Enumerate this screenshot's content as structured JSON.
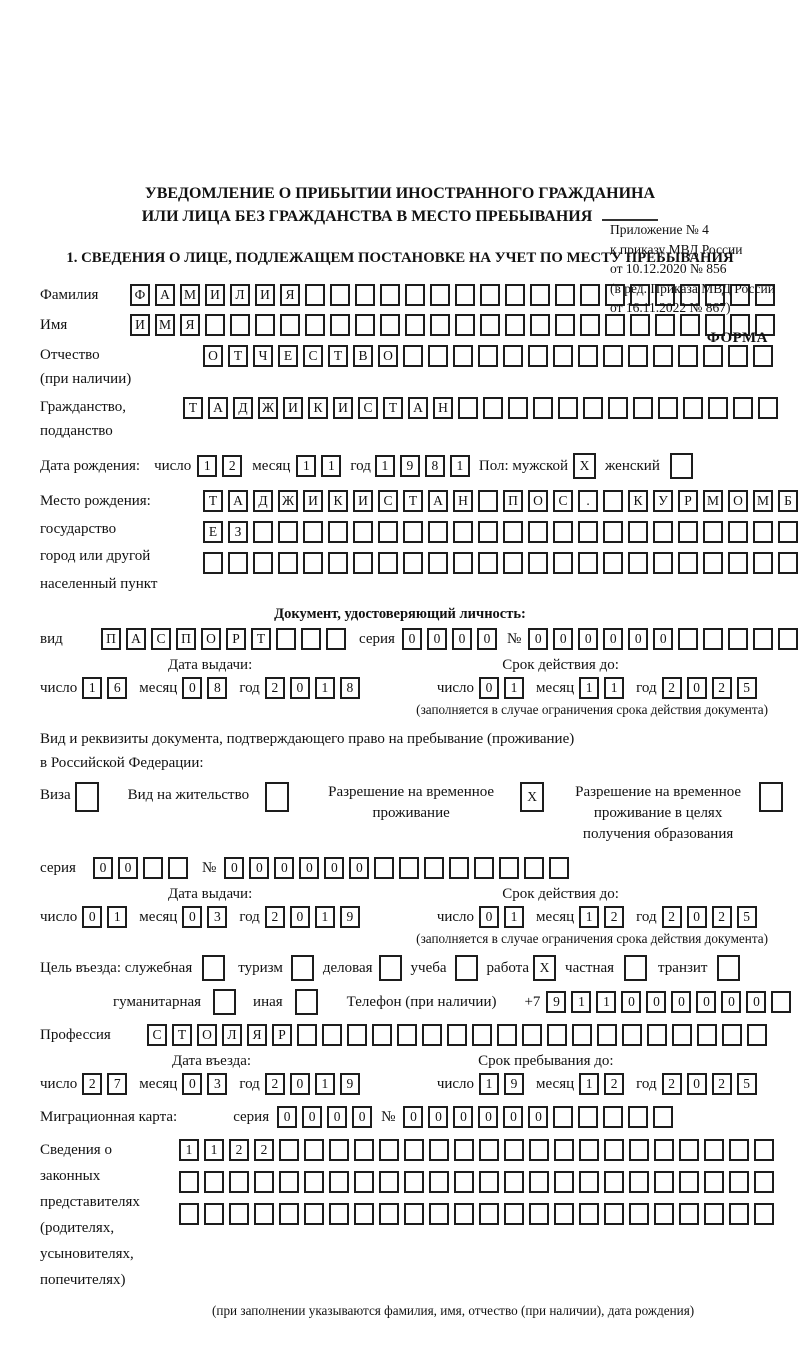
{
  "page": {
    "appendix_lines": [
      "Приложение № 4",
      "к приказу МВД России",
      "от 10.12.2020 № 856",
      "(в ред. Приказа МВД России",
      "от 16.11.2022 № 867)"
    ],
    "forma_label": "ФОРМА",
    "title_line1": "УВЕДОМЛЕНИЕ О ПРИБЫТИИ ИНОСТРАННОГО ГРАЖДАНИНА",
    "title_line2": "ИЛИ ЛИЦА БЕЗ ГРАЖДАНСТВА В МЕСТО ПРЕБЫВАНИЯ",
    "section1_heading": "1. СВЕДЕНИЯ О ЛИЦЕ, ПОДЛЕЖАЩЕМ ПОСТАНОВКЕ НА УЧЕТ ПО МЕСТУ ПРЕБЫВАНИЯ"
  },
  "common": {
    "day_label": "число",
    "month_label": "месяц",
    "year_label": "год",
    "series_label": "серия",
    "number_label": "№",
    "issue_date_label": "Дата выдачи:",
    "valid_until_label": "Срок действия до:",
    "limit_note": "(заполняется в случае ограничения срока действия документа)"
  },
  "person": {
    "surname_label": "Фамилия",
    "surname": {
      "t": "ФАМИЛИЯ",
      "n": 26
    },
    "name_label": "Имя",
    "name": {
      "t": "ИМЯ",
      "n": 26
    },
    "patronymic_label": "Отчество",
    "patronymic_sublabel": "(при наличии)",
    "patronymic": {
      "t": "ОТЧЕСТВО",
      "n": 23
    },
    "citizenship_label": "Гражданство,",
    "citizenship_sublabel": "подданство",
    "citizenship": {
      "t": "ТАДЖИКИСТАН",
      "n": 24
    },
    "birth_date_label": "Дата рождения:",
    "birth_day": {
      "t": "12",
      "n": 2
    },
    "birth_month": {
      "t": "11",
      "n": 2
    },
    "birth_year": {
      "t": "1981",
      "n": 4
    },
    "sex_label": "Пол: мужской",
    "male_box": {
      "t": "X",
      "n": 1
    },
    "female_label": "женский",
    "female_box": {
      "t": "",
      "n": 1
    },
    "birth_place_label_lines": [
      "Место рождения:",
      "государство",
      "город или другой",
      "населенный пункт"
    ],
    "birth_place_row1": {
      "t": "ТАДЖИКИСТАН ПОС. КУРМОМБ",
      "n": 24
    },
    "birth_place_row2": {
      "t": "ЕЗ",
      "n": 24
    },
    "birth_place_row3": {
      "t": "",
      "n": 24
    }
  },
  "identity_doc": {
    "heading": "Документ, удостоверяющий личность:",
    "kind_label": "вид",
    "kind": {
      "t": "ПАСПОРТ",
      "n": 10
    },
    "series": {
      "t": "0000",
      "n": 4
    },
    "number": {
      "t": "000000",
      "n": 11
    },
    "issue_day": {
      "t": "16",
      "n": 2
    },
    "issue_month": {
      "t": "08",
      "n": 2
    },
    "issue_year": {
      "t": "2018",
      "n": 4
    },
    "valid_day": {
      "t": "01",
      "n": 2
    },
    "valid_month": {
      "t": "11",
      "n": 2
    },
    "valid_year": {
      "t": "2025",
      "n": 4
    }
  },
  "residence_doc": {
    "intro_line1": "Вид и реквизиты документа, подтверждающего право на пребывание (проживание)",
    "intro_line2": "в Российской Федерации:",
    "visa_label": "Виза",
    "visa_box": {
      "t": "",
      "n": 1
    },
    "residence_permit_label": "Вид на жительство",
    "residence_permit_box": {
      "t": "",
      "n": 1
    },
    "temp_permit_line1": "Разрешение на временное",
    "temp_permit_line2": "проживание",
    "temp_permit_box": {
      "t": "X",
      "n": 1
    },
    "edu_permit_line1": "Разрешение на временное",
    "edu_permit_line2": "проживание в целях",
    "edu_permit_line3": "получения образования",
    "edu_permit_box": {
      "t": "",
      "n": 1
    },
    "series": {
      "t": "00",
      "n": 4
    },
    "number": {
      "t": "000000",
      "n": 14
    },
    "issue_day": {
      "t": "01",
      "n": 2
    },
    "issue_month": {
      "t": "03",
      "n": 2
    },
    "issue_year": {
      "t": "2019",
      "n": 4
    },
    "valid_day": {
      "t": "01",
      "n": 2
    },
    "valid_month": {
      "t": "12",
      "n": 2
    },
    "valid_year": {
      "t": "2025",
      "n": 4
    }
  },
  "visit": {
    "purpose_label": "Цель въезда: служебная",
    "purpose_official_box": {
      "t": "",
      "n": 1
    },
    "tourism_label": "туризм",
    "tourism_box": {
      "t": "",
      "n": 1
    },
    "business_label": "деловая",
    "business_box": {
      "t": "",
      "n": 1
    },
    "study_label": "учеба",
    "study_box": {
      "t": "",
      "n": 1
    },
    "work_label": "работа",
    "work_box": {
      "t": "X",
      "n": 1
    },
    "private_label": "частная",
    "private_box": {
      "t": "",
      "n": 1
    },
    "transit_label": "транзит",
    "transit_box": {
      "t": "",
      "n": 1
    },
    "humanitarian_label": "гуманитарная",
    "humanitarian_box": {
      "t": "",
      "n": 1
    },
    "other_label": "иная",
    "other_box": {
      "t": "",
      "n": 1
    },
    "phone_label": "Телефон (при наличии)",
    "phone_prefix": "+7",
    "phone": {
      "t": "911000000",
      "n": 10
    },
    "profession_label": "Профессия",
    "profession": {
      "t": "СТОЛЯР",
      "n": 25
    },
    "entry_date_label": "Дата въезда:",
    "entry_day": {
      "t": "27",
      "n": 2
    },
    "entry_month": {
      "t": "03",
      "n": 2
    },
    "entry_year": {
      "t": "2019",
      "n": 4
    },
    "stay_until_label": "Срок пребывания до:",
    "stay_day": {
      "t": "19",
      "n": 2
    },
    "stay_month": {
      "t": "12",
      "n": 2
    },
    "stay_year": {
      "t": "2025",
      "n": 4
    },
    "migration_card_label": "Миграционная карта:",
    "migration_series": {
      "t": "0000",
      "n": 4
    },
    "migration_number": {
      "t": "000000",
      "n": 11
    }
  },
  "legal_reps": {
    "label_lines": [
      "Сведения о",
      "законных",
      "представителях",
      "(родителях,",
      "усыновителях,",
      "попечителях)"
    ],
    "row1": {
      "t": "1122",
      "n": 24
    },
    "row2": {
      "t": "",
      "n": 24
    },
    "row3": {
      "t": "",
      "n": 24
    },
    "note": "(при заполнении указываются фамилия, имя, отчество (при наличии), дата рождения)"
  }
}
